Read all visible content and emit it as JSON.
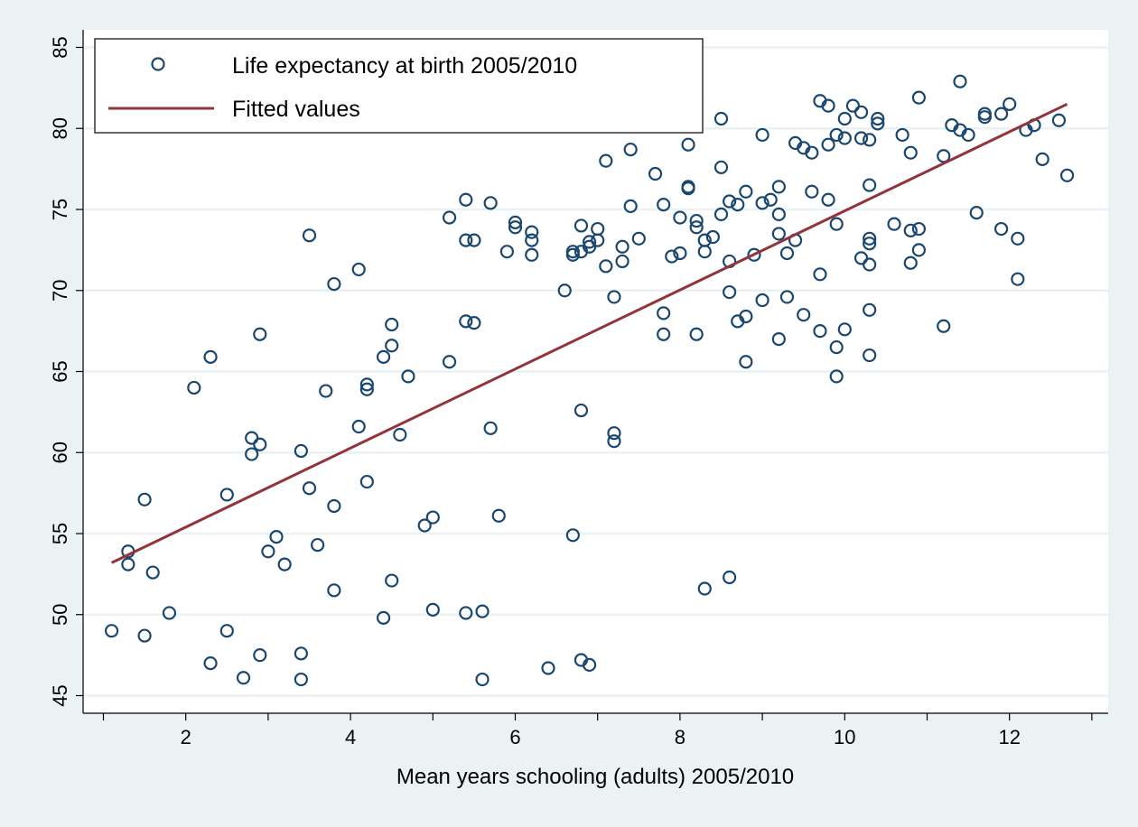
{
  "chart_data": {
    "type": "scatter",
    "xlabel": "Mean years schooling (adults) 2005/2010",
    "ylabel": "",
    "xlim": [
      1,
      13
    ],
    "ylim": [
      44,
      86
    ],
    "x_ticks": [
      2,
      4,
      6,
      8,
      10,
      12
    ],
    "x_minor_ticks": [
      1,
      3,
      5,
      7,
      9,
      11,
      13
    ],
    "y_ticks": [
      45,
      50,
      55,
      60,
      65,
      70,
      75,
      80,
      85
    ],
    "grid": true,
    "legend_position": "top-left",
    "legend": {
      "scatter_label": "Life expectancy at birth 2005/2010",
      "line_label": "Fitted values"
    },
    "colors": {
      "background": "#eaf2f3",
      "plot_background": "#ffffff",
      "marker": "#1a476f",
      "fit_line": "#90353b",
      "grid": "#eaf2f3"
    },
    "fit_line": {
      "x": [
        1.1,
        12.7
      ],
      "y": [
        53.2,
        81.5
      ]
    },
    "series": [
      {
        "name": "Life expectancy at birth 2005/2010",
        "points": [
          [
            1.1,
            49.0
          ],
          [
            1.3,
            53.9
          ],
          [
            1.3,
            53.1
          ],
          [
            1.5,
            57.1
          ],
          [
            1.5,
            48.7
          ],
          [
            1.6,
            52.6
          ],
          [
            1.8,
            50.1
          ],
          [
            2.1,
            64.0
          ],
          [
            2.3,
            65.9
          ],
          [
            2.3,
            47.0
          ],
          [
            2.5,
            49.0
          ],
          [
            2.5,
            57.4
          ],
          [
            2.7,
            46.1
          ],
          [
            2.8,
            60.9
          ],
          [
            2.8,
            59.9
          ],
          [
            2.9,
            67.3
          ],
          [
            2.9,
            60.5
          ],
          [
            2.9,
            47.5
          ],
          [
            3.0,
            53.9
          ],
          [
            3.1,
            54.8
          ],
          [
            3.2,
            53.1
          ],
          [
            3.4,
            60.1
          ],
          [
            3.4,
            47.6
          ],
          [
            3.4,
            46.0
          ],
          [
            3.5,
            73.4
          ],
          [
            3.5,
            57.8
          ],
          [
            3.6,
            54.3
          ],
          [
            3.7,
            63.8
          ],
          [
            3.8,
            56.7
          ],
          [
            3.8,
            51.5
          ],
          [
            3.8,
            70.4
          ],
          [
            4.1,
            71.3
          ],
          [
            4.1,
            61.6
          ],
          [
            4.2,
            64.2
          ],
          [
            4.2,
            63.9
          ],
          [
            4.2,
            58.2
          ],
          [
            4.4,
            65.9
          ],
          [
            4.4,
            49.8
          ],
          [
            4.5,
            67.9
          ],
          [
            4.5,
            66.6
          ],
          [
            4.5,
            52.1
          ],
          [
            4.6,
            61.1
          ],
          [
            4.7,
            64.7
          ],
          [
            4.9,
            55.5
          ],
          [
            5.0,
            56.0
          ],
          [
            5.0,
            50.3
          ],
          [
            5.2,
            65.6
          ],
          [
            5.2,
            74.5
          ],
          [
            5.4,
            75.6
          ],
          [
            5.4,
            73.1
          ],
          [
            5.4,
            68.1
          ],
          [
            5.4,
            50.1
          ],
          [
            5.5,
            73.1
          ],
          [
            5.5,
            68.0
          ],
          [
            5.6,
            46.0
          ],
          [
            5.6,
            50.2
          ],
          [
            5.7,
            75.4
          ],
          [
            5.7,
            61.5
          ],
          [
            5.8,
            56.1
          ],
          [
            5.9,
            72.4
          ],
          [
            6.0,
            74.2
          ],
          [
            6.0,
            73.9
          ],
          [
            6.2,
            73.6
          ],
          [
            6.2,
            72.2
          ],
          [
            6.2,
            73.1
          ],
          [
            6.4,
            46.7
          ],
          [
            6.6,
            70.0
          ],
          [
            6.7,
            72.2
          ],
          [
            6.7,
            72.4
          ],
          [
            6.7,
            54.9
          ],
          [
            6.8,
            62.6
          ],
          [
            6.8,
            74.0
          ],
          [
            6.8,
            72.4
          ],
          [
            6.8,
            47.2
          ],
          [
            6.9,
            72.7
          ],
          [
            6.9,
            73.0
          ],
          [
            6.9,
            46.9
          ],
          [
            7.0,
            73.8
          ],
          [
            7.0,
            73.1
          ],
          [
            7.1,
            71.5
          ],
          [
            7.1,
            78.0
          ],
          [
            7.2,
            69.6
          ],
          [
            7.2,
            61.2
          ],
          [
            7.2,
            60.7
          ],
          [
            7.3,
            72.7
          ],
          [
            7.3,
            71.8
          ],
          [
            7.4,
            78.7
          ],
          [
            7.4,
            75.2
          ],
          [
            7.5,
            73.2
          ],
          [
            7.7,
            77.2
          ],
          [
            7.8,
            68.6
          ],
          [
            7.8,
            67.3
          ],
          [
            7.8,
            75.3
          ],
          [
            7.9,
            72.1
          ],
          [
            8.0,
            72.3
          ],
          [
            8.0,
            74.5
          ],
          [
            8.1,
            79.0
          ],
          [
            8.1,
            76.3
          ],
          [
            8.1,
            76.4
          ],
          [
            8.2,
            74.3
          ],
          [
            8.2,
            67.3
          ],
          [
            8.2,
            73.9
          ],
          [
            8.3,
            73.1
          ],
          [
            8.3,
            51.6
          ],
          [
            8.3,
            72.4
          ],
          [
            8.4,
            73.3
          ],
          [
            8.5,
            80.6
          ],
          [
            8.5,
            77.6
          ],
          [
            8.5,
            74.7
          ],
          [
            8.6,
            75.5
          ],
          [
            8.6,
            71.8
          ],
          [
            8.6,
            69.9
          ],
          [
            8.6,
            52.3
          ],
          [
            8.7,
            75.3
          ],
          [
            8.7,
            68.1
          ],
          [
            8.8,
            68.4
          ],
          [
            8.8,
            65.6
          ],
          [
            8.8,
            76.1
          ],
          [
            8.9,
            72.2
          ],
          [
            9.0,
            79.6
          ],
          [
            9.0,
            75.4
          ],
          [
            9.0,
            69.4
          ],
          [
            9.1,
            75.6
          ],
          [
            9.2,
            76.4
          ],
          [
            9.2,
            74.7
          ],
          [
            9.2,
            73.5
          ],
          [
            9.2,
            67.0
          ],
          [
            9.3,
            69.6
          ],
          [
            9.3,
            72.3
          ],
          [
            9.4,
            79.1
          ],
          [
            9.4,
            73.1
          ],
          [
            9.5,
            78.8
          ],
          [
            9.5,
            68.5
          ],
          [
            9.6,
            78.5
          ],
          [
            9.6,
            76.1
          ],
          [
            9.7,
            81.7
          ],
          [
            9.7,
            71.0
          ],
          [
            9.7,
            67.5
          ],
          [
            9.8,
            81.4
          ],
          [
            9.8,
            79.0
          ],
          [
            9.8,
            75.6
          ],
          [
            9.9,
            79.6
          ],
          [
            9.9,
            74.1
          ],
          [
            9.9,
            66.5
          ],
          [
            9.9,
            64.7
          ],
          [
            10.0,
            79.4
          ],
          [
            10.0,
            80.6
          ],
          [
            10.0,
            67.6
          ],
          [
            10.1,
            81.4
          ],
          [
            10.2,
            81.0
          ],
          [
            10.2,
            79.4
          ],
          [
            10.2,
            72.0
          ],
          [
            10.3,
            76.5
          ],
          [
            10.3,
            73.2
          ],
          [
            10.3,
            72.9
          ],
          [
            10.3,
            71.6
          ],
          [
            10.3,
            68.8
          ],
          [
            10.3,
            66.0
          ],
          [
            10.3,
            79.3
          ],
          [
            10.4,
            80.3
          ],
          [
            10.4,
            80.6
          ],
          [
            10.6,
            74.1
          ],
          [
            10.7,
            79.6
          ],
          [
            10.8,
            73.7
          ],
          [
            10.8,
            71.7
          ],
          [
            10.8,
            78.5
          ],
          [
            10.9,
            81.9
          ],
          [
            10.9,
            73.8
          ],
          [
            10.9,
            72.5
          ],
          [
            11.2,
            67.8
          ],
          [
            11.2,
            78.3
          ],
          [
            11.3,
            80.2
          ],
          [
            11.4,
            82.9
          ],
          [
            11.4,
            79.9
          ],
          [
            11.5,
            79.6
          ],
          [
            11.6,
            74.8
          ],
          [
            11.7,
            80.9
          ],
          [
            11.7,
            80.7
          ],
          [
            11.9,
            80.9
          ],
          [
            11.9,
            73.8
          ],
          [
            12.0,
            81.5
          ],
          [
            12.1,
            73.2
          ],
          [
            12.1,
            70.7
          ],
          [
            12.2,
            79.9
          ],
          [
            12.3,
            80.2
          ],
          [
            12.4,
            78.1
          ],
          [
            12.6,
            80.5
          ],
          [
            12.7,
            77.1
          ]
        ]
      }
    ]
  }
}
